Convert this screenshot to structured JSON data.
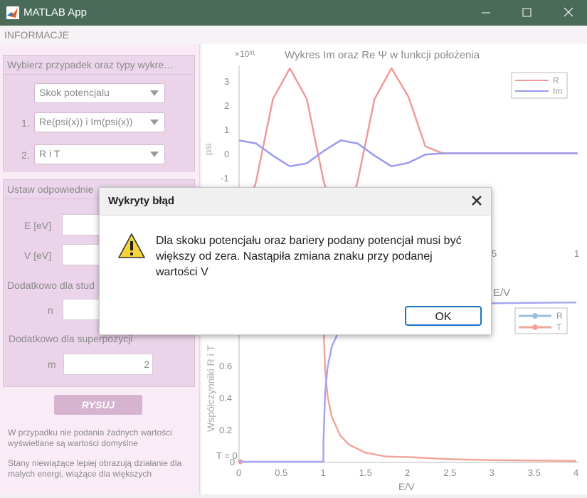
{
  "window": {
    "title": "MATLAB App",
    "minimize_glyph": "—",
    "maximize_glyph": "☐",
    "close_glyph": "✕"
  },
  "menu": {
    "items": [
      "INFORMACJE"
    ]
  },
  "left": {
    "group1": {
      "title": "Wybierz przypadek oraz typy wykre…",
      "case_dropdown": "Skok potencjalu",
      "plot1_num": "1.",
      "plot1_dropdown": "Re(psi(x)) i Im(psi(x))",
      "plot2_num": "2.",
      "plot2_dropdown": "R i T"
    },
    "group2": {
      "title": "Ustaw odpowiednie",
      "e_label": "E [eV]",
      "v_label": "V [eV]",
      "extra_label": "Dodatkowo dla stud",
      "n_label": "n",
      "super_label": "Dodatkowo dla superpozycji",
      "m_label": "m",
      "m_value": "2"
    },
    "rysuj_label": "RYSUJ",
    "note1": "W przypadku nie podania żadnych wartości wyświetlane są wartości domyślne",
    "note2": "Stany niewiążące lepiej obrazują działanie dla małych energi, wiążące dla większych"
  },
  "plot1": {
    "title": "Wykres   Im   oraz   Re   Ψ   w   funkcji   położenia",
    "ylabel": "psi",
    "exponent": "×10³¹",
    "yticks": [
      "3",
      "2",
      "1",
      "0",
      "-1"
    ],
    "xticks_visible": [
      "5",
      "1"
    ],
    "legend": [
      "R",
      "Im"
    ]
  },
  "plot2": {
    "ylabel": "Współczynniki R i T",
    "xlabel": "E/V",
    "top_label": "E/V",
    "yticks": [
      "0.6",
      "0.4",
      "0.2",
      "0"
    ],
    "xticks": [
      "0",
      "0.5",
      "1",
      "1.5",
      "2",
      "2.5",
      "3",
      "3.5",
      "4"
    ],
    "t_annotation": "T = 0",
    "legend": [
      "R",
      "T"
    ]
  },
  "dialog": {
    "title": "Wykryty błąd",
    "message": "Dla skoku potencjału oraz bariery podany potencjał musi być większy od zera. Nastąpiła zmiana znaku przy podanej wartości V",
    "ok_label": "OK"
  },
  "chart_data": [
    {
      "type": "line",
      "title": "Wykres   Im   oraz   Re   Ψ   w   funkcji   położenia",
      "ylabel": "psi",
      "y_exponent": "×10³¹",
      "xlim": [
        0,
        1
      ],
      "ylim": [
        -1.4,
        3.6
      ],
      "series": [
        {
          "name": "R",
          "color": "#f09a9a",
          "x": [
            0.0,
            0.05,
            0.1,
            0.15,
            0.2,
            0.25,
            0.3,
            0.35,
            0.4,
            0.45,
            0.5,
            0.55,
            0.6,
            0.65,
            0.7,
            0.75,
            0.8,
            0.85,
            0.9,
            0.95,
            1.0
          ],
          "y": [
            -3.5,
            -1.2,
            2.3,
            3.6,
            2.3,
            -1.2,
            -3.5,
            -1.2,
            2.3,
            3.6,
            2.4,
            0.3,
            0,
            0,
            0,
            0,
            0,
            0,
            0,
            0,
            0
          ]
        },
        {
          "name": "Im",
          "color": "#9a9af0",
          "x": [
            0.0,
            0.05,
            0.1,
            0.15,
            0.2,
            0.25,
            0.3,
            0.35,
            0.4,
            0.45,
            0.5,
            0.55,
            0.6,
            0.65,
            0.7,
            0.75,
            0.8,
            0.85,
            0.9,
            0.95,
            1.0
          ],
          "y": [
            0.55,
            0.42,
            -0.1,
            -0.55,
            -0.42,
            0.1,
            0.55,
            0.42,
            -0.1,
            -0.55,
            -0.4,
            -0.05,
            0,
            0,
            0,
            0,
            0,
            0,
            0,
            0,
            0
          ]
        }
      ]
    },
    {
      "type": "line",
      "xlabel": "E/V",
      "ylabel": "Współczynniki R i T",
      "xlim": [
        0,
        4
      ],
      "ylim": [
        0,
        1.0
      ],
      "series": [
        {
          "name": "R",
          "color": "#f0a69a",
          "x": [
            0.0,
            1.0,
            1.001,
            1.02,
            1.05,
            1.1,
            1.2,
            1.3,
            1.5,
            1.75,
            2.0,
            2.5,
            3.0,
            3.5,
            4.0
          ],
          "y": [
            1.0,
            1.0,
            0.88,
            0.57,
            0.41,
            0.28,
            0.164,
            0.108,
            0.056,
            0.032,
            0.029,
            0.016,
            0.01,
            0.007,
            0.005
          ]
        },
        {
          "name": "T",
          "color": "#a6a6f0",
          "x": [
            0.0,
            1.0,
            1.001,
            1.02,
            1.05,
            1.1,
            1.2,
            1.3,
            1.5,
            1.75,
            2.0,
            2.5,
            3.0,
            3.5,
            4.0
          ],
          "y": [
            0.0,
            0.0,
            0.12,
            0.43,
            0.59,
            0.72,
            0.836,
            0.892,
            0.944,
            0.968,
            0.971,
            0.984,
            0.99,
            0.993,
            0.995
          ]
        }
      ]
    }
  ]
}
